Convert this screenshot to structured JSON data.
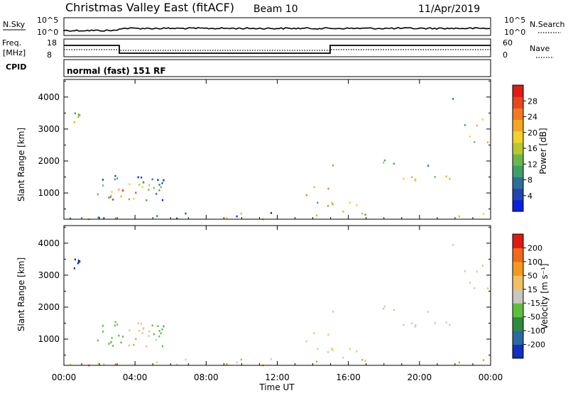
{
  "header": {
    "station": "Christmas Valley East (fitACF)",
    "beam": "Beam 10",
    "date": "11/Apr/2019"
  },
  "panels": {
    "nsky": {
      "label": "N.Sky",
      "left_ticks": [
        "10^5",
        "10^0"
      ],
      "right_label": "N.Search",
      "right_ticks": [
        "10^5",
        "10^0"
      ]
    },
    "freq": {
      "label_top": "Freq.",
      "label_unit": "[MHz]",
      "left_ticks": [
        "18",
        "8"
      ],
      "right_label": "Nave",
      "right_ticks": [
        "60",
        "0"
      ]
    },
    "cpid": {
      "label": "CPID",
      "text": "normal (fast) 151 RF"
    }
  },
  "chart_data": [
    {
      "type": "heatmap",
      "name_label": "power-panel",
      "ylabel": "Slant Range [km]",
      "yticks": [
        "4000",
        "3000",
        "2000",
        "1000"
      ],
      "ytick_values": [
        4000,
        3000,
        2000,
        1000
      ],
      "ylim": [
        180,
        4550
      ],
      "xlim_hours": [
        0,
        24
      ],
      "colorbar": {
        "label": "Power [dB]",
        "ticks": [
          "28",
          "24",
          "20",
          "16",
          "12",
          "8",
          "4"
        ],
        "colors": [
          "#0b1fe0",
          "#2244b0",
          "#2c6e9a",
          "#3f9e6a",
          "#6ab84a",
          "#b8c830",
          "#f2d22a",
          "#f5a623",
          "#f07a22",
          "#e8461e",
          "#e01a14"
        ]
      }
    },
    {
      "type": "heatmap",
      "name_label": "velocity-panel",
      "ylabel": "Slant Range [km]",
      "yticks": [
        "4000",
        "3000",
        "2000",
        "1000"
      ],
      "ytick_values": [
        4000,
        3000,
        2000,
        1000
      ],
      "ylim": [
        180,
        4550
      ],
      "xlim_hours": [
        0,
        24
      ],
      "xlabel": "Time UT",
      "xticks": [
        "00:00",
        "04:00",
        "08:00",
        "12:00",
        "16:00",
        "20:00",
        "00:00"
      ],
      "xtick_hours": [
        0,
        4,
        8,
        12,
        16,
        20,
        24
      ],
      "colorbar": {
        "label": "Velocity [m s⁻¹]",
        "ticks": [
          "200",
          "100",
          "50",
          "15",
          "-15",
          "-50",
          "-100",
          "-200"
        ],
        "colors": [
          "#1030c0",
          "#2a6aa0",
          "#2e8a3e",
          "#5cbf3a",
          "#c8c8c0",
          "#f2c060",
          "#f29a20",
          "#f06a18",
          "#e01a10"
        ]
      }
    }
  ]
}
